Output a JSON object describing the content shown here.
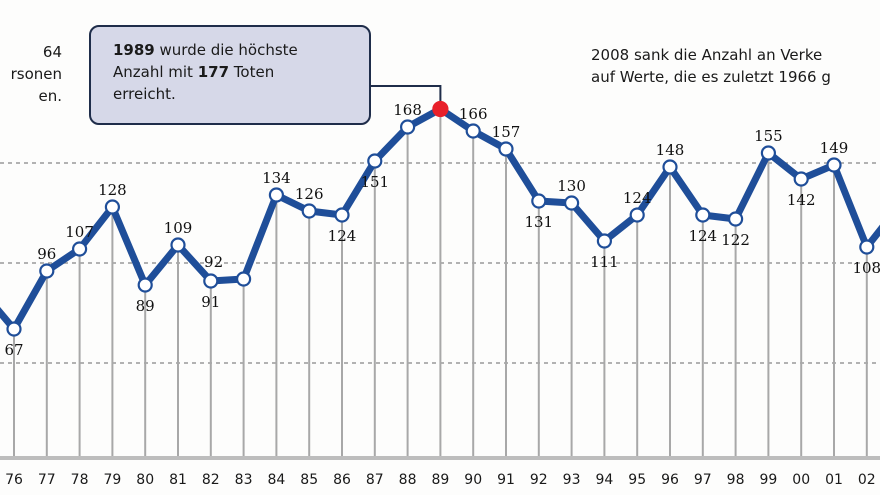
{
  "notes": {
    "left_lines": [
      "64",
      "rsonen",
      "en."
    ],
    "right_lines": [
      "2008 sank die Anzahl an Verke",
      "auf Werte, die es zuletzt 1966 g"
    ]
  },
  "callout": {
    "year": "1989",
    "text1": " wurde die höchste",
    "text2a": "Anzahl mit ",
    "value": "177",
    "text2b": " Toten",
    "text3": "erreicht."
  },
  "chart_data": {
    "type": "line",
    "title": "",
    "xlabel": "",
    "ylabel": "",
    "x": [
      "76",
      "77",
      "78",
      "79",
      "80",
      "81",
      "82",
      "83",
      "84",
      "85",
      "86",
      "87",
      "88",
      "89",
      "90",
      "91",
      "92",
      "93",
      "94",
      "95",
      "96",
      "97",
      "98",
      "99",
      "00",
      "01",
      "02"
    ],
    "values": [
      67,
      96,
      107,
      128,
      89,
      109,
      91,
      92,
      134,
      126,
      124,
      151,
      168,
      177,
      166,
      157,
      131,
      130,
      111,
      124,
      148,
      124,
      122,
      155,
      142,
      149,
      108
    ],
    "labels": [
      "67",
      "96",
      "107",
      "128",
      "89",
      "109",
      "91",
      "92",
      "134",
      "126",
      "124",
      "151",
      "168",
      "",
      "166",
      "157",
      "131",
      "130",
      "111",
      "124",
      "148",
      "124",
      "122",
      "155",
      "142",
      "149",
      "108"
    ],
    "label_pos": [
      "below",
      "above",
      "above",
      "above",
      "below",
      "above",
      "below",
      "above",
      "above",
      "above",
      "below",
      "below",
      "above",
      "none",
      "above",
      "above",
      "below",
      "above",
      "below",
      "above",
      "above",
      "below",
      "below",
      "above",
      "below",
      "above",
      "below"
    ],
    "highlight_index": 13,
    "gridlines": [
      50,
      100,
      150
    ],
    "grid": true,
    "colors": {
      "line": "#1f4e99",
      "marker_fill": "#ffffff",
      "highlight": "#e8202a",
      "grid": "#9a9a9a",
      "box": "#d6d8e8"
    }
  }
}
